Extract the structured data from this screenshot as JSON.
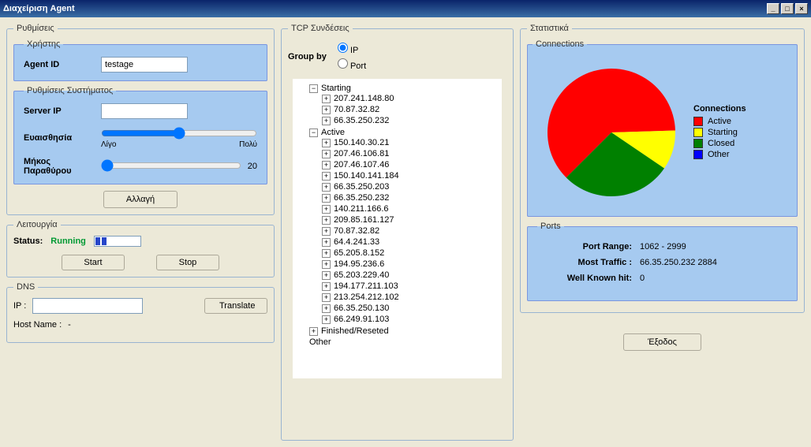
{
  "window": {
    "title": "Διαχείριση Agent"
  },
  "settings": {
    "legend": "Ρυθμίσεις",
    "user": {
      "legend": "Χρήστης",
      "agent_id_label": "Agent ID",
      "agent_id_value": "testage"
    },
    "system": {
      "legend": "Ρυθμίσεις Συστήματος",
      "server_ip_label": "Server IP",
      "server_ip_value": "",
      "sensitivity_label": "Ευαισθησία",
      "sensitivity_min": "Λίγο",
      "sensitivity_max": "Πολύ",
      "sensitivity_value": 4,
      "window_len_label": "Μήκος Παραθύρου",
      "window_len_value": "20",
      "change_btn": "Αλλαγή"
    }
  },
  "operation": {
    "legend": "Λειτουργία",
    "status_label": "Status:",
    "status_value": "Running",
    "start_btn": "Start",
    "stop_btn": "Stop"
  },
  "dns": {
    "legend": "DNS",
    "ip_label": "IP :",
    "ip_value": "",
    "translate_btn": "Translate",
    "hostname_label": "Host Name :",
    "hostname_value": "-"
  },
  "tcp": {
    "legend": "TCP Συνδέσεις",
    "group_by_label": "Group by",
    "group_by_ip": "IP",
    "group_by_port": "Port",
    "group_by_selected": "ip",
    "tree": {
      "starting": {
        "label": "Starting",
        "expanded": true,
        "items": [
          "207.241.148.80",
          "70.87.32.82",
          "66.35.250.232"
        ]
      },
      "active": {
        "label": "Active",
        "expanded": true,
        "items": [
          "150.140.30.21",
          "207.46.106.81",
          "207.46.107.46",
          "150.140.141.184",
          "66.35.250.203",
          "66.35.250.232",
          "140.211.166.6",
          "209.85.161.127",
          "70.87.32.82",
          "64.4.241.33",
          "65.205.8.152",
          "194.95.236.6",
          "65.203.229.40",
          "194.177.211.103",
          "213.254.212.102",
          "66.35.250.130",
          "66.249.91.103"
        ]
      },
      "finished": {
        "label": "Finished/Reseted",
        "expanded": false
      },
      "other": {
        "label": "Other",
        "expanded": false
      }
    }
  },
  "stats": {
    "legend": "Στατιστικά",
    "connections": {
      "legend": "Connections",
      "chart": {
        "type": "pie",
        "slices": [
          {
            "label": "Active",
            "value": 62,
            "color": "#ff0000"
          },
          {
            "label": "Starting",
            "value": 10,
            "color": "#ffff00"
          },
          {
            "label": "Closed",
            "value": 28,
            "color": "#008000"
          },
          {
            "label": "Other",
            "value": 0,
            "color": "#0000ff"
          }
        ],
        "start_angle_deg": 135,
        "background": "#a6caf0",
        "legend_title": "Connections"
      }
    },
    "ports": {
      "legend": "Ports",
      "port_range_label": "Port Range:",
      "port_range_value": "1062 - 2999",
      "most_traffic_label": "Most Traffic :",
      "most_traffic_value": "66.35.250.232 2884",
      "well_known_label": "Well Known hit:",
      "well_known_value": "0"
    }
  },
  "exit_btn": "Έξοδος"
}
